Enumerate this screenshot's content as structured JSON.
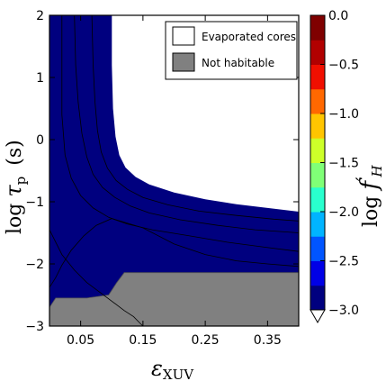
{
  "chart_data": {
    "type": "contourf",
    "xlabel": {
      "symbol": "ε",
      "subscript": "XUV"
    },
    "ylabel": {
      "prefix": "log ",
      "symbol": "τ",
      "subscript": "p",
      "unit": "(s)"
    },
    "colorbar_label": {
      "prefix": "log ",
      "symbol": "f",
      "prime": "′",
      "subscript": "H"
    },
    "xlim": [
      0.0,
      0.4
    ],
    "ylim": [
      -3,
      2
    ],
    "x_ticks": [
      0.05,
      0.15,
      0.25,
      0.35
    ],
    "x_tick_labels": [
      "0.05",
      "0.15",
      "0.25",
      "0.35"
    ],
    "y_ticks": [
      2,
      1,
      0,
      -1,
      -2,
      -3
    ],
    "y_tick_labels": [
      "2",
      "1",
      "0",
      "−1",
      "−2",
      "−3"
    ],
    "levels": [
      -3.0,
      -2.75,
      -2.5,
      -2.25,
      -2.0,
      -1.75,
      -1.5,
      -1.25,
      -1.0,
      -0.75,
      -0.5,
      -0.25,
      0.0
    ],
    "colorbar_ticks": [
      0.0,
      -0.5,
      -1.0,
      -1.5,
      -2.0,
      -2.5,
      -3.0
    ],
    "colorbar_tick_labels": [
      "0.0",
      "−0.5",
      "−1.0",
      "−1.5",
      "−2.0",
      "−2.5",
      "−3.0"
    ],
    "colors": [
      "#00007f",
      "#0000e6",
      "#0055ff",
      "#00b4ff",
      "#29ffce",
      "#80ff77",
      "#cdff29",
      "#ffc500",
      "#ff6800",
      "#f00f00",
      "#b10000",
      "#7f0000"
    ],
    "regions": [
      {
        "fill": "#80ff77",
        "boundary": [
          [
            0.0,
            -2.38
          ],
          [
            0.01,
            -2.22
          ],
          [
            0.02,
            -2.02
          ],
          [
            0.035,
            -1.78
          ],
          [
            0.055,
            -1.55
          ],
          [
            0.075,
            -1.38
          ],
          [
            0.1,
            -1.27
          ],
          [
            0.15,
            -1.42
          ],
          [
            0.2,
            -1.68
          ],
          [
            0.25,
            -1.85
          ],
          [
            0.3,
            -1.95
          ],
          [
            0.35,
            -2.0
          ],
          [
            0.4,
            -2.04
          ],
          [
            0.4,
            -3
          ],
          [
            0.0,
            -3
          ]
        ]
      },
      {
        "fill": "#29ffce",
        "boundary": [
          [
            0.0,
            2
          ],
          [
            0.015,
            2
          ],
          [
            0.015,
            0.4
          ],
          [
            0.02,
            -0.25
          ],
          [
            0.03,
            -0.62
          ],
          [
            0.045,
            -0.9
          ],
          [
            0.065,
            -1.1
          ],
          [
            0.09,
            -1.25
          ],
          [
            0.12,
            -1.36
          ],
          [
            0.16,
            -1.45
          ],
          [
            0.22,
            -1.55
          ],
          [
            0.28,
            -1.65
          ],
          [
            0.34,
            -1.73
          ],
          [
            0.4,
            -1.8
          ],
          [
            0.4,
            -3
          ],
          [
            0.0,
            -3
          ]
        ]
      },
      {
        "fill": "#00b4ff",
        "boundary": [
          [
            0.0,
            2
          ],
          [
            0.04,
            2
          ],
          [
            0.042,
            1.2
          ],
          [
            0.046,
            0.6
          ],
          [
            0.052,
            0.1
          ],
          [
            0.06,
            -0.28
          ],
          [
            0.07,
            -0.56
          ],
          [
            0.085,
            -0.77
          ],
          [
            0.105,
            -0.93
          ],
          [
            0.13,
            -1.07
          ],
          [
            0.16,
            -1.18
          ],
          [
            0.21,
            -1.29
          ],
          [
            0.27,
            -1.38
          ],
          [
            0.33,
            -1.45
          ],
          [
            0.4,
            -1.5
          ],
          [
            0.4,
            -3
          ],
          [
            0.0,
            -3
          ]
        ]
      },
      {
        "fill": "#0055ff",
        "boundary": [
          [
            0.0,
            2
          ],
          [
            0.068,
            2
          ],
          [
            0.07,
            1.2
          ],
          [
            0.073,
            0.6
          ],
          [
            0.077,
            0.15
          ],
          [
            0.083,
            -0.2
          ],
          [
            0.093,
            -0.46
          ],
          [
            0.107,
            -0.66
          ],
          [
            0.125,
            -0.8
          ],
          [
            0.15,
            -0.93
          ],
          [
            0.19,
            -1.05
          ],
          [
            0.24,
            -1.15
          ],
          [
            0.3,
            -1.22
          ],
          [
            0.36,
            -1.28
          ],
          [
            0.4,
            -1.31
          ],
          [
            0.4,
            -3
          ],
          [
            0.0,
            -3
          ]
        ]
      },
      {
        "fill": "#0000e6",
        "boundary": [
          [
            0.0,
            2
          ],
          [
            0.085,
            2
          ],
          [
            0.087,
            1.2
          ],
          [
            0.09,
            0.6
          ],
          [
            0.094,
            0.15
          ],
          [
            0.1,
            -0.2
          ],
          [
            0.11,
            -0.43
          ],
          [
            0.125,
            -0.6
          ],
          [
            0.145,
            -0.72
          ],
          [
            0.17,
            -0.82
          ],
          [
            0.21,
            -0.93
          ],
          [
            0.26,
            -1.02
          ],
          [
            0.31,
            -1.1
          ],
          [
            0.36,
            -1.15
          ],
          [
            0.4,
            -1.2
          ],
          [
            0.4,
            -3
          ],
          [
            0.0,
            -3
          ]
        ]
      },
      {
        "fill": "#00007f",
        "boundary": [
          [
            0.0,
            2
          ],
          [
            0.1,
            2
          ],
          [
            0.1,
            1.2
          ],
          [
            0.102,
            0.5
          ],
          [
            0.106,
            0.05
          ],
          [
            0.112,
            -0.25
          ],
          [
            0.122,
            -0.45
          ],
          [
            0.138,
            -0.6
          ],
          [
            0.16,
            -0.72
          ],
          [
            0.2,
            -0.85
          ],
          [
            0.25,
            -0.96
          ],
          [
            0.3,
            -1.04
          ],
          [
            0.35,
            -1.1
          ],
          [
            0.4,
            -1.16
          ],
          [
            0.4,
            -3
          ],
          [
            0.0,
            -3
          ]
        ]
      }
    ],
    "boundaries": [
      [
        [
          0.02,
          2
        ],
        [
          0.02,
          0.4
        ],
        [
          0.025,
          -0.25
        ],
        [
          0.035,
          -0.62
        ],
        [
          0.05,
          -0.9
        ],
        [
          0.07,
          -1.1
        ],
        [
          0.095,
          -1.25
        ],
        [
          0.125,
          -1.36
        ],
        [
          0.165,
          -1.45
        ],
        [
          0.225,
          -1.55
        ],
        [
          0.285,
          -1.65
        ],
        [
          0.345,
          -1.73
        ],
        [
          0.4,
          -1.8
        ]
      ],
      [
        [
          0.04,
          2
        ],
        [
          0.042,
          1.2
        ],
        [
          0.046,
          0.6
        ],
        [
          0.052,
          0.1
        ],
        [
          0.06,
          -0.28
        ],
        [
          0.07,
          -0.56
        ],
        [
          0.085,
          -0.77
        ],
        [
          0.105,
          -0.93
        ],
        [
          0.13,
          -1.07
        ],
        [
          0.16,
          -1.18
        ],
        [
          0.21,
          -1.29
        ],
        [
          0.27,
          -1.38
        ],
        [
          0.33,
          -1.45
        ],
        [
          0.4,
          -1.5
        ]
      ],
      [
        [
          0.068,
          2
        ],
        [
          0.07,
          1.2
        ],
        [
          0.073,
          0.6
        ],
        [
          0.077,
          0.15
        ],
        [
          0.083,
          -0.2
        ],
        [
          0.093,
          -0.46
        ],
        [
          0.107,
          -0.66
        ],
        [
          0.125,
          -0.8
        ],
        [
          0.15,
          -0.93
        ],
        [
          0.19,
          -1.05
        ],
        [
          0.24,
          -1.15
        ],
        [
          0.3,
          -1.22
        ],
        [
          0.36,
          -1.28
        ],
        [
          0.4,
          -1.31
        ]
      ],
      [
        [
          0.0,
          -2.38
        ],
        [
          0.01,
          -2.22
        ],
        [
          0.02,
          -2.02
        ],
        [
          0.035,
          -1.78
        ],
        [
          0.055,
          -1.55
        ],
        [
          0.075,
          -1.38
        ],
        [
          0.1,
          -1.27
        ],
        [
          0.15,
          -1.42
        ],
        [
          0.2,
          -1.68
        ],
        [
          0.25,
          -1.85
        ],
        [
          0.3,
          -1.95
        ],
        [
          0.35,
          -2.0
        ],
        [
          0.4,
          -2.04
        ]
      ],
      [
        [
          0.0,
          -1.45
        ],
        [
          0.02,
          -1.85
        ],
        [
          0.04,
          -2.1
        ],
        [
          0.06,
          -2.3
        ],
        [
          0.08,
          -2.45
        ],
        [
          0.1,
          -2.6
        ],
        [
          0.12,
          -2.75
        ],
        [
          0.135,
          -2.85
        ],
        [
          0.145,
          -2.95
        ],
        [
          0.15,
          -3
        ]
      ]
    ],
    "not_habitable_region": [
      [
        0.0,
        -2.7
      ],
      [
        0.01,
        -2.55
      ],
      [
        0.06,
        -2.55
      ],
      [
        0.095,
        -2.5
      ],
      [
        0.108,
        -2.3
      ],
      [
        0.12,
        -2.14
      ],
      [
        0.4,
        -2.14
      ],
      [
        0.4,
        -3
      ],
      [
        0.0,
        -3
      ]
    ],
    "legend": {
      "location": "upper-right",
      "entries": [
        {
          "label": "Evaporated cores",
          "color": "#ffffff"
        },
        {
          "label": "Not habitable",
          "color": "#808080"
        }
      ]
    },
    "grid": false
  }
}
